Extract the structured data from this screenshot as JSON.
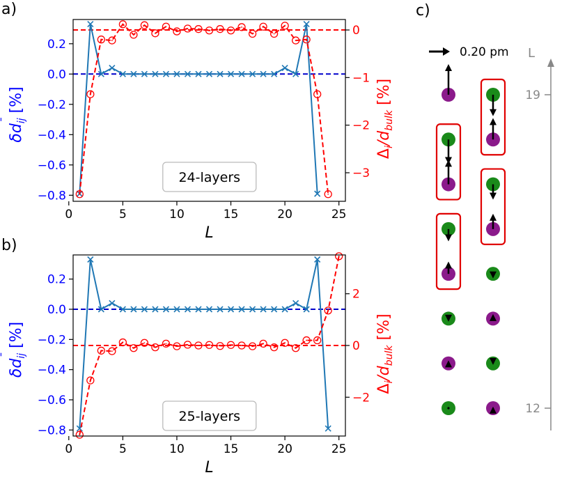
{
  "chart_data": [
    {
      "panel_label": "a)",
      "type": "line",
      "annotation": "24-layers",
      "xlabel": "L",
      "xlim": [
        0.4,
        25.6
      ],
      "xticks": [
        0,
        5,
        10,
        15,
        20,
        25
      ],
      "left_axis": {
        "label_main": "δd",
        "label_overbar": "¯",
        "label_sub": "ij",
        "label_unit": " [%]",
        "color": "#0000ff",
        "ylim": [
          -0.84,
          0.36
        ],
        "ticks": [
          0.2,
          0.0,
          -0.2,
          -0.4,
          -0.6,
          -0.8
        ],
        "tick_labels": [
          "0.2",
          "0.0",
          "−0.2",
          "−0.4",
          "−0.6",
          "−0.8"
        ]
      },
      "right_axis": {
        "label_main": "Δ",
        "label_sub1": "i",
        "label_mid": "/d",
        "label_sub2": "bulk",
        "label_unit": " [%]",
        "color": "#ff0000",
        "ylim": [
          -3.6,
          0.22
        ],
        "ticks": [
          0,
          -1,
          -2,
          -3
        ],
        "tick_labels": [
          "0",
          "−1",
          "−2",
          "−3"
        ]
      },
      "series": [
        {
          "axis": "left",
          "color": "#1f77b4",
          "style": "solid",
          "marker": "x",
          "x": [
            1,
            2,
            3,
            4,
            5,
            6,
            7,
            8,
            9,
            10,
            11,
            12,
            13,
            14,
            15,
            16,
            17,
            18,
            19,
            20,
            21,
            22,
            23
          ],
          "y": [
            -0.79,
            0.33,
            0.0,
            0.04,
            0.0,
            0.0,
            0.0,
            0.0,
            0.0,
            0.0,
            0.0,
            0.0,
            0.0,
            0.0,
            0.0,
            0.0,
            0.0,
            0.0,
            0.0,
            0.04,
            0.0,
            0.33,
            -0.79
          ]
        },
        {
          "axis": "right",
          "color": "#ff0000",
          "style": "dashed",
          "marker": "o",
          "x": [
            1,
            2,
            3,
            4,
            5,
            6,
            7,
            8,
            9,
            10,
            11,
            12,
            13,
            14,
            15,
            16,
            17,
            18,
            19,
            20,
            21,
            22,
            23,
            24
          ],
          "y": [
            -3.45,
            -1.35,
            -0.2,
            -0.22,
            0.12,
            -0.1,
            0.1,
            -0.07,
            0.07,
            -0.03,
            0.03,
            0.02,
            -0.01,
            0.02,
            -0.01,
            0.06,
            -0.08,
            0.07,
            -0.08,
            0.09,
            -0.22,
            -0.2,
            -1.35,
            -3.45
          ]
        }
      ],
      "ref_lines": [
        {
          "axis": "left",
          "y": 0.0,
          "color": "#0000cc"
        },
        {
          "axis": "right",
          "y": 0.0,
          "color": "#ff0000"
        }
      ]
    },
    {
      "panel_label": "b)",
      "type": "line",
      "annotation": "25-layers",
      "xlabel": "L",
      "xlim": [
        0.4,
        25.6
      ],
      "xticks": [
        0,
        5,
        10,
        15,
        20,
        25
      ],
      "left_axis": {
        "label_main": "δd",
        "label_overbar": "¯",
        "label_sub": "ij",
        "label_unit": " [%]",
        "color": "#0000ff",
        "ylim": [
          -0.84,
          0.36
        ],
        "ticks": [
          0.2,
          0.0,
          -0.2,
          -0.4,
          -0.6,
          -0.8
        ],
        "tick_labels": [
          "0.2",
          "0.0",
          "−0.2",
          "−0.4",
          "−0.6",
          "−0.8"
        ]
      },
      "right_axis": {
        "label_main": "Δ",
        "label_sub1": "i",
        "label_mid": "/d",
        "label_sub2": "bulk",
        "label_unit": " [%]",
        "color": "#ff0000",
        "ylim": [
          -3.5,
          3.5
        ],
        "ticks": [
          2,
          0,
          -2
        ],
        "tick_labels": [
          "2",
          "0",
          "−2"
        ]
      },
      "series": [
        {
          "axis": "left",
          "color": "#1f77b4",
          "style": "solid",
          "marker": "x",
          "x": [
            1,
            2,
            3,
            4,
            5,
            6,
            7,
            8,
            9,
            10,
            11,
            12,
            13,
            14,
            15,
            16,
            17,
            18,
            19,
            20,
            21,
            22,
            23,
            24
          ],
          "y": [
            -0.79,
            0.33,
            0.0,
            0.04,
            0.0,
            0.0,
            0.0,
            0.0,
            0.0,
            0.0,
            0.0,
            0.0,
            0.0,
            0.0,
            0.0,
            0.0,
            0.0,
            0.0,
            0.0,
            0.0,
            0.04,
            0.0,
            0.33,
            -0.79
          ]
        },
        {
          "axis": "right",
          "color": "#ff0000",
          "style": "dashed",
          "marker": "o",
          "x": [
            1,
            2,
            3,
            4,
            5,
            6,
            7,
            8,
            9,
            10,
            11,
            12,
            13,
            14,
            15,
            16,
            17,
            18,
            19,
            20,
            21,
            22,
            23,
            24,
            25
          ],
          "y": [
            -3.45,
            -1.35,
            -0.2,
            -0.22,
            0.12,
            -0.1,
            0.1,
            -0.07,
            0.07,
            -0.03,
            0.03,
            0.0,
            0.02,
            -0.02,
            0.02,
            0.0,
            -0.03,
            0.07,
            -0.07,
            0.1,
            -0.1,
            0.2,
            0.2,
            1.35,
            3.45
          ]
        }
      ],
      "ref_lines": [
        {
          "axis": "left",
          "y": 0.0,
          "color": "#0000cc"
        },
        {
          "axis": "right",
          "y": 0.0,
          "color": "#ff0000"
        }
      ]
    },
    {
      "panel_label": "c)",
      "type": "diagram",
      "scale_label": "0.20 pm",
      "axis_label": "L",
      "axis_ticks": [
        {
          "layer": 19,
          "label": "19"
        },
        {
          "layer": 12,
          "label": "12"
        }
      ],
      "columns": [
        {
          "atoms": [
            {
              "layer": 19,
              "color": "purple",
              "arrow": 1.0
            },
            {
              "layer": 18,
              "color": "green",
              "arrow": -0.8
            },
            {
              "layer": 17,
              "color": "purple",
              "arrow": 0.8
            },
            {
              "layer": 16,
              "color": "green",
              "arrow": -0.4
            },
            {
              "layer": 15,
              "color": "purple",
              "arrow": 0.4
            },
            {
              "layer": 14,
              "color": "green",
              "arrow": -0.1
            },
            {
              "layer": 13,
              "color": "purple",
              "arrow": 0.1
            },
            {
              "layer": 12,
              "color": "green",
              "arrow": 0.0
            }
          ],
          "boxes": [
            [
              18,
              17
            ],
            [
              16,
              15
            ]
          ]
        },
        {
          "atoms": [
            {
              "layer": 19,
              "color": "green",
              "arrow": -0.7
            },
            {
              "layer": 18,
              "color": "purple",
              "arrow": 0.7
            },
            {
              "layer": 17,
              "color": "green",
              "arrow": -0.5
            },
            {
              "layer": 16,
              "color": "purple",
              "arrow": 0.5
            },
            {
              "layer": 15,
              "color": "green",
              "arrow": -0.15
            },
            {
              "layer": 14,
              "color": "purple",
              "arrow": 0.15
            },
            {
              "layer": 13,
              "color": "green",
              "arrow": -0.05
            },
            {
              "layer": 12,
              "color": "purple",
              "arrow": 0.05
            }
          ],
          "boxes": [
            [
              19,
              18
            ],
            [
              17,
              16
            ]
          ]
        }
      ],
      "atom_colors": {
        "green": "#1a8a1a",
        "purple": "#8b1a8b"
      }
    }
  ]
}
